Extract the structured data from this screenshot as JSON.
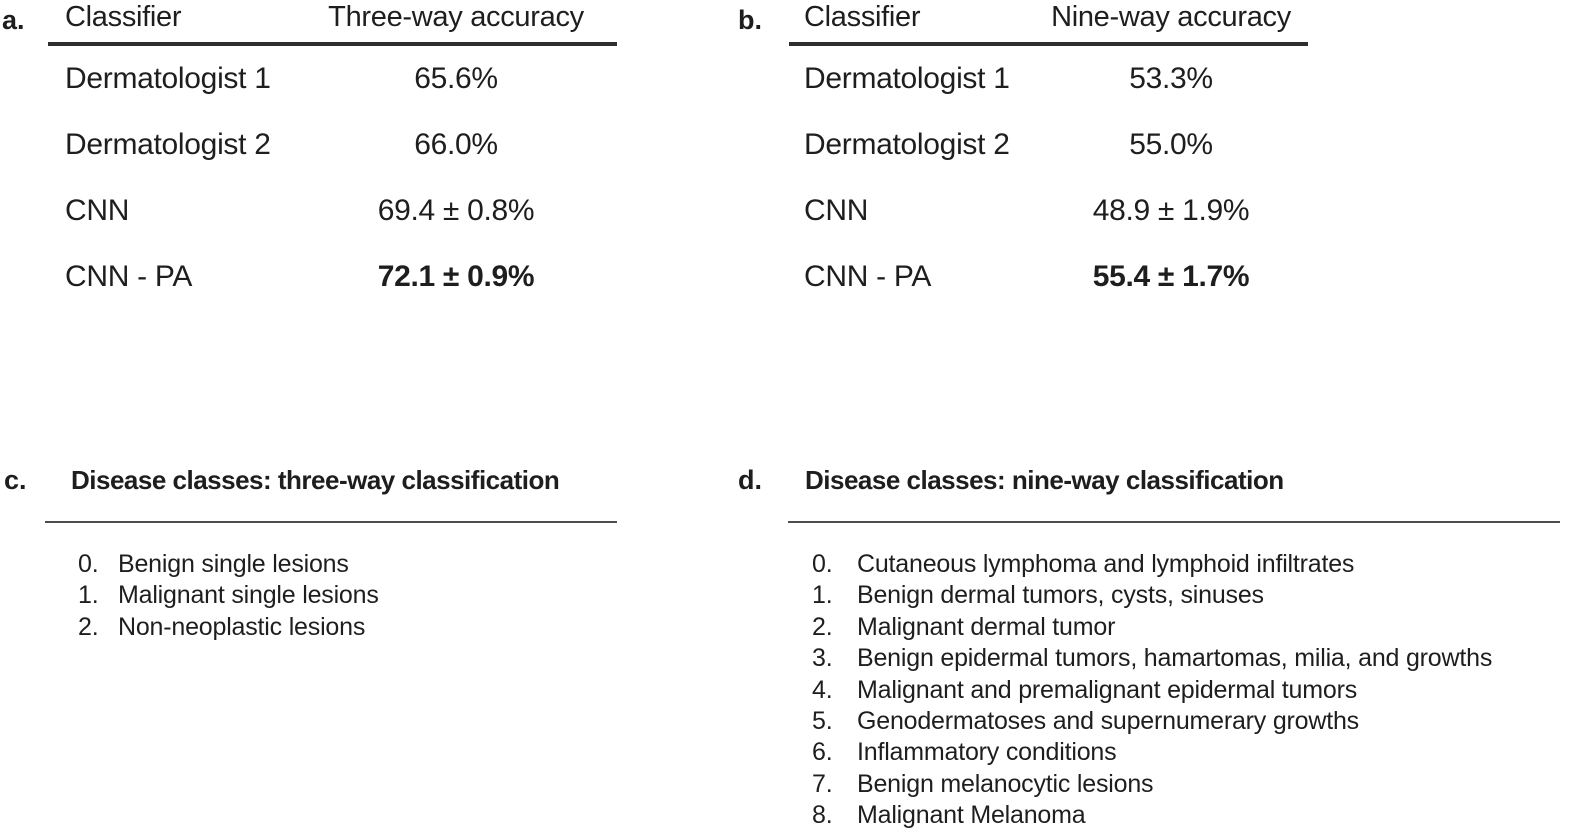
{
  "panels": {
    "a": {
      "label": "a.",
      "table": {
        "col_classifier": "Classifier",
        "col_accuracy": "Three-way accuracy",
        "rows": [
          {
            "classifier": "Dermatologist 1",
            "accuracy": "65.6%"
          },
          {
            "classifier": "Dermatologist 2",
            "accuracy": "66.0%"
          },
          {
            "classifier": "CNN",
            "accuracy": "69.4 ± 0.8%"
          },
          {
            "classifier": "CNN - PA",
            "accuracy": "72.1 ± 0.9%",
            "emphasis": true
          }
        ]
      }
    },
    "b": {
      "label": "b.",
      "table": {
        "col_classifier": "Classifier",
        "col_accuracy": "Nine-way accuracy",
        "rows": [
          {
            "classifier": "Dermatologist 1",
            "accuracy": "53.3%"
          },
          {
            "classifier": "Dermatologist 2",
            "accuracy": "55.0%"
          },
          {
            "classifier": "CNN",
            "accuracy": "48.9 ± 1.9%"
          },
          {
            "classifier": "CNN - PA",
            "accuracy": "55.4 ± 1.7%",
            "emphasis": true
          }
        ]
      }
    },
    "c": {
      "label": "c.",
      "title": "Disease classes: three-way classification",
      "items": [
        {
          "num": "0.",
          "text": "Benign single lesions"
        },
        {
          "num": "1.",
          "text": "Malignant single lesions"
        },
        {
          "num": "2.",
          "text": "Non-neoplastic lesions"
        }
      ]
    },
    "d": {
      "label": "d.",
      "title": "Disease classes: nine-way classification",
      "items": [
        {
          "num": "0.",
          "text": "Cutaneous lymphoma and lymphoid infiltrates"
        },
        {
          "num": "1.",
          "text": "Benign dermal tumors, cysts, sinuses"
        },
        {
          "num": "2.",
          "text": "Malignant dermal tumor"
        },
        {
          "num": "3.",
          "text": "Benign epidermal tumors, hamartomas, milia, and growths"
        },
        {
          "num": "4.",
          "text": "Malignant and premalignant epidermal tumors"
        },
        {
          "num": "5.",
          "text": "Genodermatoses and supernumerary growths"
        },
        {
          "num": "6.",
          "text": "Inflammatory conditions"
        },
        {
          "num": "7.",
          "text": "Benign melanocytic lesions"
        },
        {
          "num": "8.",
          "text": "Malignant Melanoma"
        }
      ]
    }
  },
  "colors": {
    "text": "#1e1e1e",
    "rule_thick": "#2e2e2e",
    "rule_thin": "#4d4d4d",
    "background": "#ffffff"
  }
}
